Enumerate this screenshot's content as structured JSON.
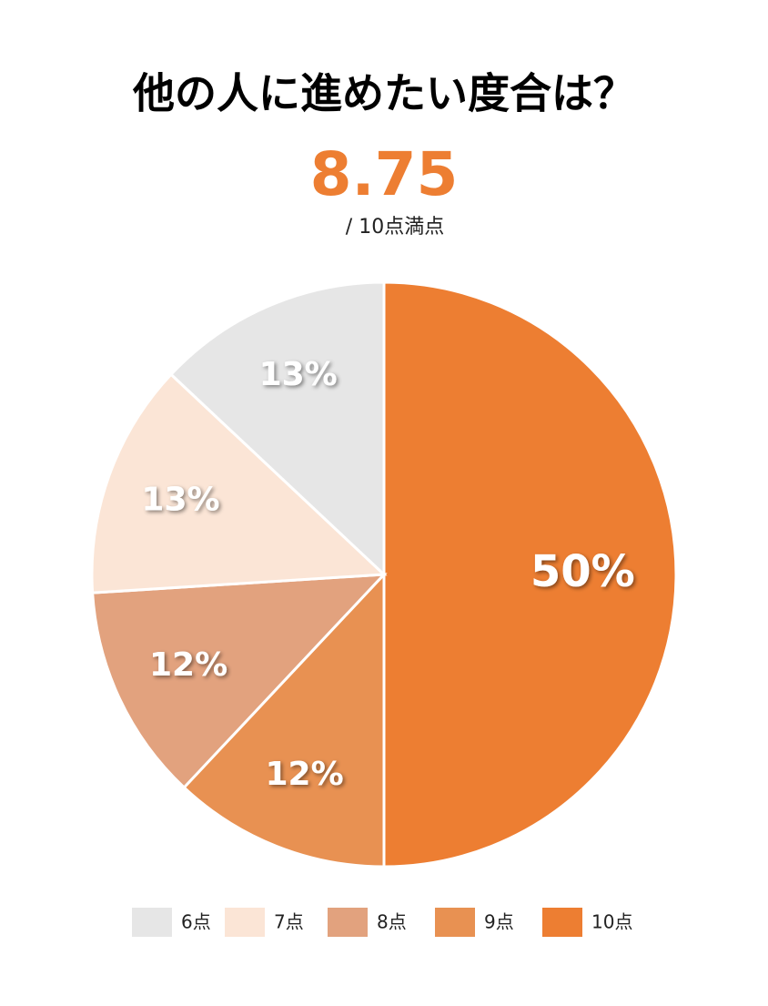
{
  "chart_data": {
    "type": "pie",
    "title": "他の人に進めたい度合は？",
    "score": 8.75,
    "score_note": "/ 10点満点",
    "categories": [
      "6点",
      "7点",
      "8点",
      "9点",
      "10点"
    ],
    "values": [
      13,
      13,
      12,
      12,
      50
    ],
    "value_labels": [
      "13%",
      "13%",
      "12%",
      "12%",
      "50%"
    ],
    "colors": [
      "#e6e6e6",
      "#fbe5d6",
      "#e2a27e",
      "#e89152",
      "#ed7e32"
    ],
    "legend": "bottom"
  }
}
